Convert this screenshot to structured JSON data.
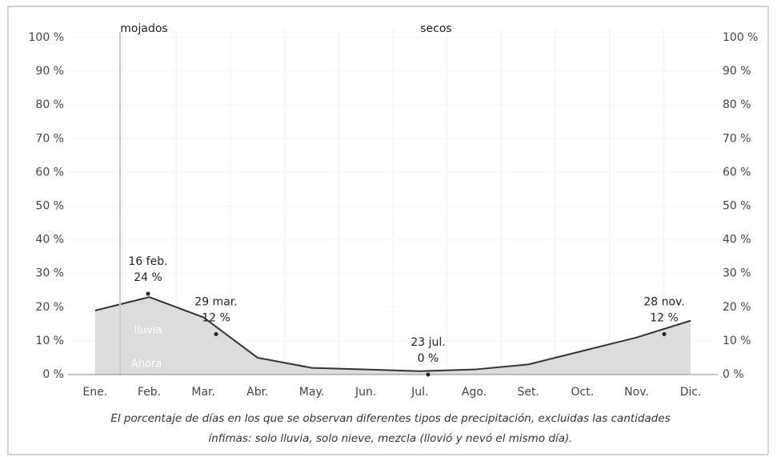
{
  "chart_data": {
    "type": "area",
    "top_labels": [
      "mojados",
      "secos"
    ],
    "categories": [
      "Ene.",
      "Feb.",
      "Mar.",
      "Abr.",
      "May.",
      "Jun.",
      "Jul.",
      "Ago.",
      "Set.",
      "Oct.",
      "Nov.",
      "Dic."
    ],
    "series": [
      {
        "name": "lluvia",
        "color": "#333333",
        "fill": "#dcdcdc",
        "values": [
          19,
          23,
          17,
          5,
          2,
          1.5,
          1,
          1.5,
          3,
          7,
          11,
          16
        ]
      }
    ],
    "now_label": "Ahora",
    "annotations": [
      {
        "label": "16 feb.",
        "value": 24,
        "value_label": "24 %"
      },
      {
        "label": "29 mar.",
        "value": 12,
        "value_label": "12 %"
      },
      {
        "label": "23 jul.",
        "value": 0,
        "value_label": "0 %"
      },
      {
        "label": "28 nov.",
        "value": 12,
        "value_label": "12 %"
      }
    ],
    "ylim": [
      0,
      100
    ],
    "yticks": [
      {
        "value": 0,
        "label": "0 %"
      },
      {
        "value": 10,
        "label": "10 %"
      },
      {
        "value": 20,
        "label": "20 %"
      },
      {
        "value": 30,
        "label": "30 %"
      },
      {
        "value": 40,
        "label": "40 %"
      },
      {
        "value": 50,
        "label": "50 %"
      },
      {
        "value": 60,
        "label": "60 %"
      },
      {
        "value": 70,
        "label": "70 %"
      },
      {
        "value": 80,
        "label": "80 %"
      },
      {
        "value": 90,
        "label": "90 %"
      },
      {
        "value": 100,
        "label": "100 %"
      }
    ],
    "grid": true,
    "caption": [
      "El porcentaje de días en los que se observan diferentes tipos de precipitación, excluidas las cantidades",
      "ínfimas: solo lluvia, solo nieve, mezcla (llovió y nevó el mismo día)."
    ]
  }
}
